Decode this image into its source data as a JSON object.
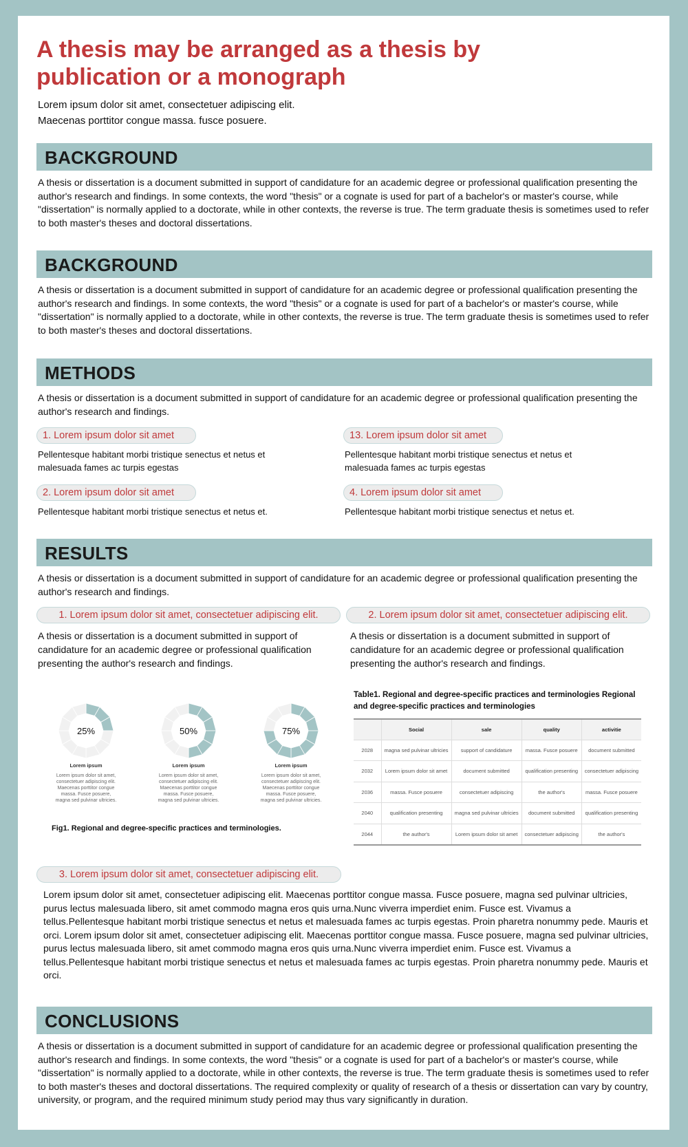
{
  "title": "A thesis may be arranged as a thesis by publication or a monograph",
  "subtitle_lines": [
    "Lorem ipsum dolor sit amet, consectetuer adipiscing elit.",
    "Maecenas porttitor congue massa. fusce posuere."
  ],
  "colors": {
    "accent": "#a3c4c5",
    "title": "#c0393b",
    "pill_bg": "#ececec"
  },
  "sections": {
    "background1": {
      "heading": "BACKGROUND",
      "text": "A thesis or dissertation is a document submitted in support of candidature for an academic degree or professional qualification presenting the author's research and findings. In some contexts, the word \"thesis\" or a cognate is used for part of a bachelor's or master's course, while \"dissertation\" is normally applied to a doctorate, while in other contexts, the reverse is true. The term graduate thesis is sometimes used to refer to both master's theses and doctoral dissertations."
    },
    "background2": {
      "heading": "BACKGROUND",
      "text": "A thesis or dissertation is a document submitted in support of candidature for an academic degree or professional qualification presenting the author's research and findings. In some contexts, the word \"thesis\" or a cognate is used for part of a bachelor's or master's course, while \"dissertation\" is normally applied to a doctorate, while in other contexts, the reverse is true. The term graduate thesis is sometimes used to refer to both master's theses and doctoral dissertations."
    },
    "methods": {
      "heading": "METHODS",
      "text": "A thesis or dissertation is a document submitted in support of candidature for an academic degree or professional qualification presenting the author's research and findings.",
      "items": [
        {
          "label": "1. Lorem ipsum dolor sit amet",
          "text": "Pellentesque habitant morbi tristique senectus et netus et malesuada fames ac turpis egestas"
        },
        {
          "label": "13. Lorem ipsum dolor sit amet",
          "text": "Pellentesque habitant morbi tristique senectus et netus et malesuada fames ac turpis egestas"
        },
        {
          "label": "2. Lorem ipsum dolor sit amet",
          "text": "Pellentesque habitant morbi tristique senectus et netus et."
        },
        {
          "label": "4. Lorem ipsum dolor sit amet",
          "text": "Pellentesque habitant morbi tristique senectus et netus et."
        }
      ]
    },
    "results": {
      "heading": "RESULTS",
      "text": "A thesis or dissertation is a document submitted in support of candidature for an academic degree or professional qualification presenting the author's research and findings.",
      "items": [
        {
          "label": "1. Lorem ipsum dolor sit amet, consectetuer adipiscing elit.",
          "text": "A thesis or dissertation is a document submitted in support of candidature for an academic degree or professional qualification presenting the author's research and findings."
        },
        {
          "label": "2. Lorem ipsum dolor sit amet, consectetuer adipiscing elit.",
          "text": "A thesis or dissertation is a document submitted in support of candidature for an academic degree or professional qualification presenting the author's research and findings."
        },
        {
          "label": "3. Lorem ipsum dolor sit amet, consectetuer adipiscing elit.",
          "text": "Lorem ipsum dolor sit amet, consectetuer adipiscing elit. Maecenas porttitor congue massa. Fusce posuere, magna sed pulvinar ultricies, purus lectus malesuada libero, sit amet commodo magna eros quis urna.Nunc viverra imperdiet enim. Fusce est. Vivamus a tellus.Pellentesque habitant morbi tristique senectus et netus et malesuada fames ac turpis egestas. Proin pharetra nonummy pede. Mauris et orci. Lorem ipsum dolor sit amet, consectetuer adipiscing elit. Maecenas porttitor congue massa. Fusce posuere, magna sed pulvinar ultricies, purus lectus malesuada libero, sit amet commodo magna eros quis urna.Nunc viverra imperdiet enim. Fusce est. Vivamus a tellus.Pellentesque habitant morbi tristique senectus et netus et malesuada fames ac turpis egestas. Proin pharetra nonummy pede. Mauris et orci."
        }
      ],
      "figure": {
        "caption": "Fig1. Regional and degree-specific practices and terminologies.",
        "donuts": [
          {
            "value": 25,
            "label_pct": "25%",
            "title": "Lorem ipsum",
            "text": "Lorem ipsum dolor sit amet, consectetuer adipiscing elit. Maecenas porttitor congue massa. Fusce posuere, magna sed pulvinar ultricies."
          },
          {
            "value": 50,
            "label_pct": "50%",
            "title": "Lorem ipsum",
            "text": "Lorem ipsum dolor sit amet, consectetuer adipiscing elit. Maecenas porttitor congue massa. Fusce posuere, magna sed pulvinar ultricies."
          },
          {
            "value": 75,
            "label_pct": "75%",
            "title": "Lorem ipsum",
            "text": "Lorem ipsum dolor sit amet, consectetuer adipiscing elit. Maecenas porttitor congue massa. Fusce posuere, magna sed pulvinar ultricies."
          }
        ]
      },
      "table": {
        "caption": "Table1. Regional and degree-specific practices and terminologies Regional and degree-specific practices and terminologies",
        "headers": [
          "",
          "Social",
          "sale",
          "quality",
          "activitie"
        ],
        "rows": [
          [
            "2028",
            "magna sed pulvinar ultricies",
            "support of candidature",
            "massa. Fusce posuere",
            "document submitted"
          ],
          [
            "2032",
            "Lorem ipsum dolor sit amet",
            "document submitted",
            "qualification presenting",
            "consectetuer adipiscing"
          ],
          [
            "2036",
            "massa. Fusce posuere",
            "consectetuer adipiscing",
            "the author's",
            "massa. Fusce posuere"
          ],
          [
            "2040",
            "qualification presenting",
            "magna sed pulvinar ultricies",
            "document submitted",
            "qualification presenting"
          ],
          [
            "2044",
            "the author's",
            "Lorem ipsum dolor sit amet",
            "consectetuer adipiscing",
            "the author's"
          ]
        ]
      }
    },
    "conclusions": {
      "heading": "CONCLUSIONS",
      "text": "A thesis or dissertation is a document submitted in support of candidature for an academic degree or professional qualification presenting the author's research and findings. In some contexts, the word \"thesis\" or a cognate is used for part of a bachelor's or master's course, while \"dissertation\" is normally applied to a doctorate, while in other contexts, the reverse is true. The term graduate thesis is sometimes used to refer to both master's theses and doctoral dissertations. The required complexity or quality of research of a thesis or dissertation can vary by country, university, or program, and the required minimum study period may thus vary significantly in duration."
    }
  }
}
